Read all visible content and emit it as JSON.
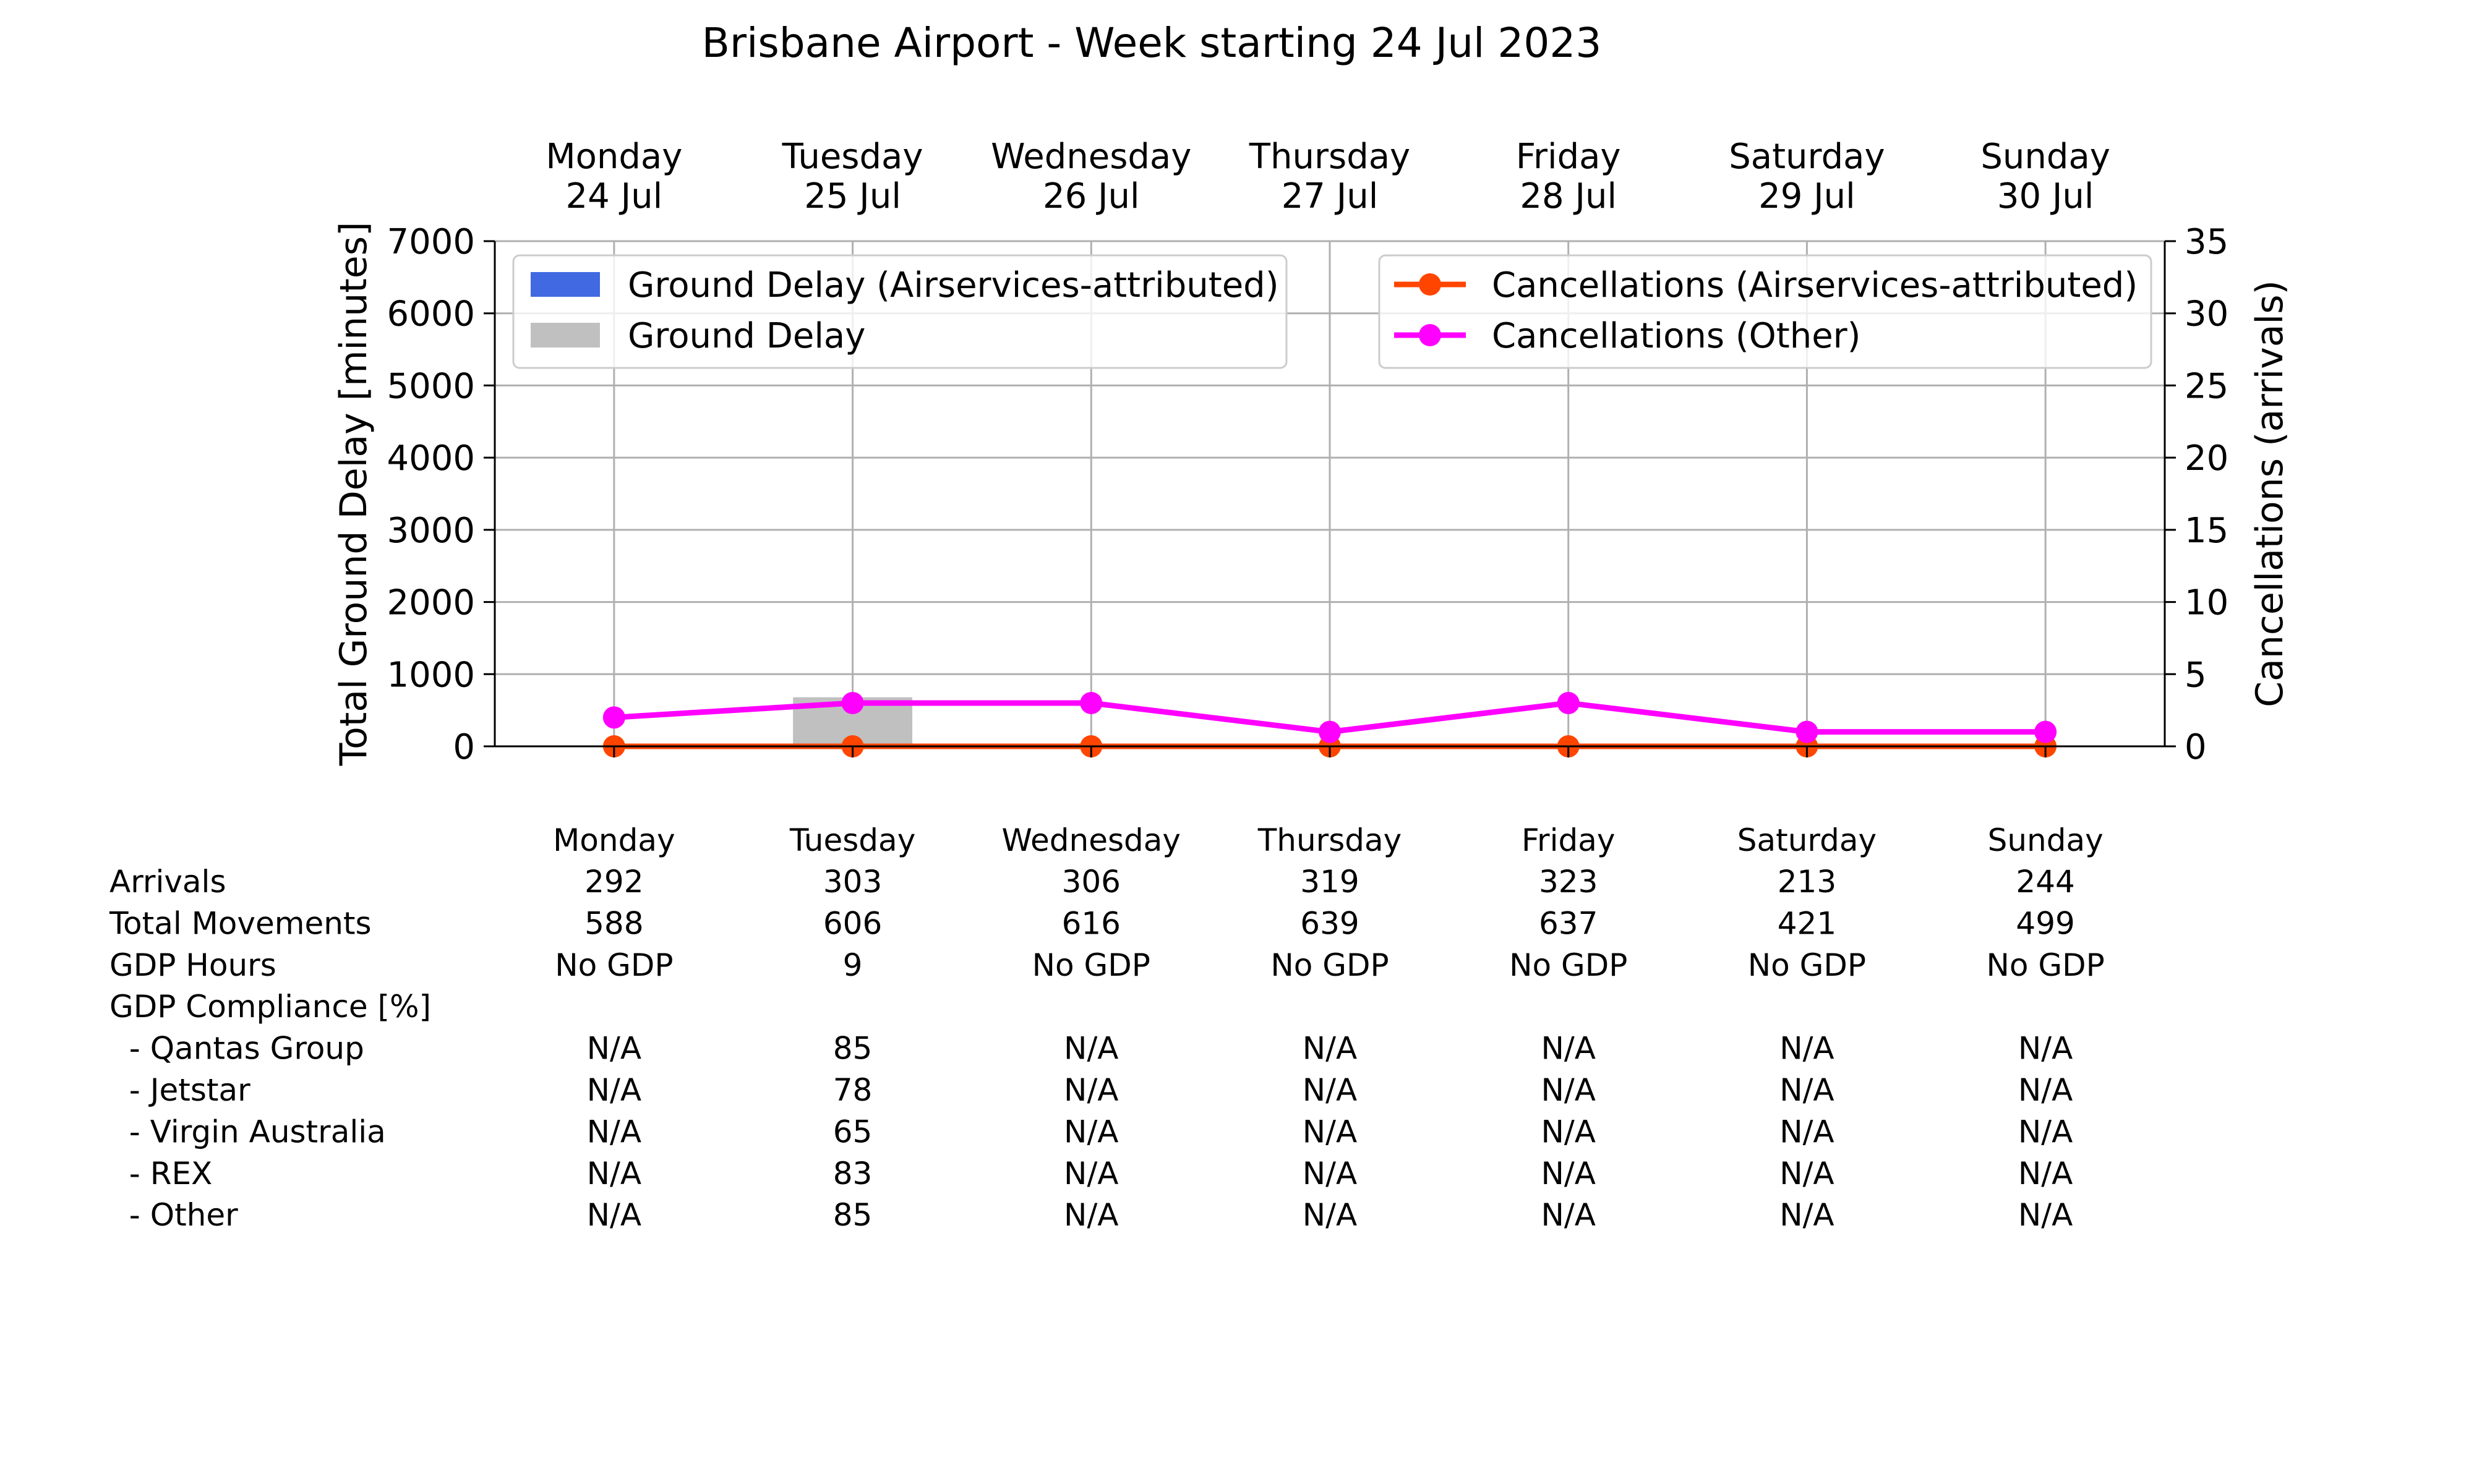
{
  "chart_data": {
    "type": "bar",
    "title": "Brisbane Airport - Week starting 24 Jul 2023",
    "categories": [
      {
        "day": "Monday",
        "date": "24 Jul"
      },
      {
        "day": "Tuesday",
        "date": "25 Jul"
      },
      {
        "day": "Wednesday",
        "date": "26 Jul"
      },
      {
        "day": "Thursday",
        "date": "27 Jul"
      },
      {
        "day": "Friday",
        "date": "28 Jul"
      },
      {
        "day": "Saturday",
        "date": "29 Jul"
      },
      {
        "day": "Sunday",
        "date": "30 Jul"
      }
    ],
    "ylabel_left": "Total Ground Delay [minutes]",
    "ylabel_right": "Cancellations (arrivals)",
    "ylim_left": [
      0,
      7000
    ],
    "ylim_right": [
      0,
      35
    ],
    "yticks_left": [
      0,
      1000,
      2000,
      3000,
      4000,
      5000,
      6000,
      7000
    ],
    "yticks_right": [
      0,
      5,
      10,
      15,
      20,
      25,
      30,
      35
    ],
    "grid": true,
    "bar_series": [
      {
        "name": "Ground Delay (Airservices-attributed)",
        "color": "#4169e1",
        "axis": "left",
        "values": [
          0,
          0,
          0,
          0,
          0,
          0,
          0
        ]
      },
      {
        "name": "Ground Delay",
        "color": "#c0c0c0",
        "axis": "left",
        "values": [
          0,
          680,
          0,
          0,
          0,
          0,
          0
        ]
      }
    ],
    "line_series": [
      {
        "name": "Cancellations (Airservices-attributed)",
        "color": "#ff4500",
        "axis": "right",
        "values": [
          0,
          0,
          0,
          0,
          0,
          0,
          0
        ]
      },
      {
        "name": "Cancellations (Other)",
        "color": "#ff00ff",
        "axis": "right",
        "values": [
          2,
          3,
          3,
          1,
          3,
          1,
          1
        ]
      }
    ],
    "legend_bars_placement": "upper-left",
    "legend_lines_placement": "upper-right"
  },
  "table": {
    "header": [
      "Monday",
      "Tuesday",
      "Wednesday",
      "Thursday",
      "Friday",
      "Saturday",
      "Sunday"
    ],
    "rows": [
      {
        "label": "Arrivals",
        "values": [
          "292",
          "303",
          "306",
          "319",
          "323",
          "213",
          "244"
        ]
      },
      {
        "label": "Total Movements",
        "values": [
          "588",
          "606",
          "616",
          "639",
          "637",
          "421",
          "499"
        ]
      },
      {
        "label": "GDP Hours",
        "values": [
          "No GDP",
          "9",
          "No GDP",
          "No GDP",
          "No GDP",
          "No GDP",
          "No GDP"
        ]
      },
      {
        "label": "GDP Compliance [%]",
        "values": [
          "",
          "",
          "",
          "",
          "",
          "",
          ""
        ]
      },
      {
        "label": "  - Qantas Group",
        "values": [
          "N/A",
          "85",
          "N/A",
          "N/A",
          "N/A",
          "N/A",
          "N/A"
        ]
      },
      {
        "label": "  - Jetstar",
        "values": [
          "N/A",
          "78",
          "N/A",
          "N/A",
          "N/A",
          "N/A",
          "N/A"
        ]
      },
      {
        "label": "  - Virgin Australia",
        "values": [
          "N/A",
          "65",
          "N/A",
          "N/A",
          "N/A",
          "N/A",
          "N/A"
        ]
      },
      {
        "label": "  - REX",
        "values": [
          "N/A",
          "83",
          "N/A",
          "N/A",
          "N/A",
          "N/A",
          "N/A"
        ]
      },
      {
        "label": "  - Other",
        "values": [
          "N/A",
          "85",
          "N/A",
          "N/A",
          "N/A",
          "N/A",
          "N/A"
        ]
      }
    ]
  }
}
